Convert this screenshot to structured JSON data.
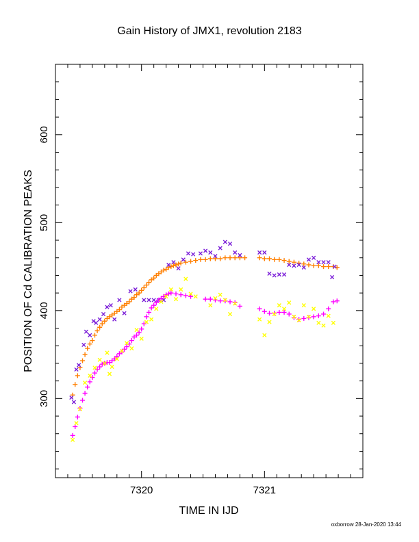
{
  "chart_data": {
    "type": "scatter",
    "title": "Gain History of JMX1, revolution 2183",
    "xlabel": "TIME IN IJD",
    "ylabel": "POSITION OF Cd CALIBRATION PEAKS",
    "xlim": [
      7319.3,
      7321.8
    ],
    "ylim": [
      210,
      680
    ],
    "x_ticks": [
      7320,
      7321
    ],
    "y_ticks": [
      300,
      400,
      500,
      600
    ],
    "grid": false,
    "footer": "oxborrow 28-Jan-2020 13:44",
    "series": [
      {
        "marker": "plus",
        "color": "#ff7f00",
        "points": [
          [
            7319.44,
            304
          ],
          [
            7319.46,
            316
          ],
          [
            7319.48,
            326
          ],
          [
            7319.5,
            335
          ],
          [
            7319.52,
            343
          ],
          [
            7319.54,
            350
          ],
          [
            7319.56,
            357
          ],
          [
            7319.58,
            362
          ],
          [
            7319.6,
            366
          ],
          [
            7319.62,
            372
          ],
          [
            7319.64,
            377
          ],
          [
            7319.66,
            381
          ],
          [
            7319.68,
            385
          ],
          [
            7319.7,
            388
          ],
          [
            7319.72,
            391
          ],
          [
            7319.74,
            393
          ],
          [
            7319.76,
            395
          ],
          [
            7319.78,
            397
          ],
          [
            7319.8,
            399
          ],
          [
            7319.82,
            401
          ],
          [
            7319.84,
            404
          ],
          [
            7319.86,
            406
          ],
          [
            7319.88,
            408
          ],
          [
            7319.9,
            410
          ],
          [
            7319.92,
            413
          ],
          [
            7319.94,
            415
          ],
          [
            7319.96,
            418
          ],
          [
            7319.98,
            420
          ],
          [
            7320.0,
            423
          ],
          [
            7320.02,
            426
          ],
          [
            7320.04,
            429
          ],
          [
            7320.06,
            432
          ],
          [
            7320.08,
            435
          ],
          [
            7320.1,
            437
          ],
          [
            7320.12,
            440
          ],
          [
            7320.14,
            442
          ],
          [
            7320.16,
            444
          ],
          [
            7320.18,
            446
          ],
          [
            7320.2,
            447
          ],
          [
            7320.22,
            449
          ],
          [
            7320.24,
            450
          ],
          [
            7320.26,
            451
          ],
          [
            7320.28,
            452
          ],
          [
            7320.3,
            453
          ],
          [
            7320.32,
            454
          ],
          [
            7320.36,
            455
          ],
          [
            7320.4,
            456
          ],
          [
            7320.44,
            457
          ],
          [
            7320.48,
            458
          ],
          [
            7320.52,
            458
          ],
          [
            7320.56,
            459
          ],
          [
            7320.6,
            459
          ],
          [
            7320.64,
            459
          ],
          [
            7320.68,
            460
          ],
          [
            7320.72,
            460
          ],
          [
            7320.76,
            460
          ],
          [
            7320.8,
            460
          ],
          [
            7320.84,
            460
          ],
          [
            7320.96,
            460
          ],
          [
            7321.0,
            459
          ],
          [
            7321.04,
            459
          ],
          [
            7321.08,
            458
          ],
          [
            7321.12,
            458
          ],
          [
            7321.16,
            457
          ],
          [
            7321.2,
            456
          ],
          [
            7321.24,
            455
          ],
          [
            7321.28,
            454
          ],
          [
            7321.32,
            453
          ],
          [
            7321.36,
            452
          ],
          [
            7321.4,
            451
          ],
          [
            7321.44,
            451
          ],
          [
            7321.48,
            450
          ],
          [
            7321.52,
            450
          ],
          [
            7321.56,
            450
          ],
          [
            7321.59,
            449
          ]
        ]
      },
      {
        "marker": "cross",
        "color": "#7b1fd8",
        "points": [
          [
            7319.43,
            301
          ],
          [
            7319.45,
            296
          ],
          [
            7319.47,
            333
          ],
          [
            7319.49,
            338
          ],
          [
            7319.53,
            361
          ],
          [
            7319.55,
            376
          ],
          [
            7319.58,
            372
          ],
          [
            7319.61,
            388
          ],
          [
            7319.63,
            386
          ],
          [
            7319.66,
            390
          ],
          [
            7319.69,
            396
          ],
          [
            7319.72,
            404
          ],
          [
            7319.75,
            406
          ],
          [
            7319.78,
            390
          ],
          [
            7319.82,
            412
          ],
          [
            7319.86,
            397
          ],
          [
            7319.91,
            422
          ],
          [
            7319.95,
            424
          ],
          [
            7320.02,
            412
          ],
          [
            7320.06,
            412
          ],
          [
            7320.1,
            412
          ],
          [
            7320.14,
            412
          ],
          [
            7320.18,
            412
          ],
          [
            7320.22,
            452
          ],
          [
            7320.26,
            455
          ],
          [
            7320.3,
            448
          ],
          [
            7320.34,
            458
          ],
          [
            7320.38,
            465
          ],
          [
            7320.42,
            464
          ],
          [
            7320.48,
            465
          ],
          [
            7320.52,
            468
          ],
          [
            7320.56,
            466
          ],
          [
            7320.6,
            462
          ],
          [
            7320.64,
            471
          ],
          [
            7320.68,
            478
          ],
          [
            7320.72,
            476
          ],
          [
            7320.76,
            466
          ],
          [
            7320.8,
            463
          ],
          [
            7320.96,
            466
          ],
          [
            7321.0,
            466
          ],
          [
            7321.04,
            442
          ],
          [
            7321.08,
            440
          ],
          [
            7321.12,
            441
          ],
          [
            7321.16,
            441
          ],
          [
            7321.2,
            452
          ],
          [
            7321.24,
            451
          ],
          [
            7321.28,
            452
          ],
          [
            7321.32,
            449
          ],
          [
            7321.36,
            458
          ],
          [
            7321.4,
            460
          ],
          [
            7321.44,
            455
          ],
          [
            7321.48,
            455
          ],
          [
            7321.52,
            455
          ],
          [
            7321.55,
            438
          ],
          [
            7321.57,
            450
          ]
        ]
      },
      {
        "marker": "plus",
        "color": "#ff00ff",
        "points": [
          [
            7319.44,
            258
          ],
          [
            7319.46,
            268
          ],
          [
            7319.48,
            279
          ],
          [
            7319.5,
            289
          ],
          [
            7319.52,
            298
          ],
          [
            7319.54,
            306
          ],
          [
            7319.56,
            313
          ],
          [
            7319.58,
            319
          ],
          [
            7319.6,
            324
          ],
          [
            7319.62,
            329
          ],
          [
            7319.64,
            333
          ],
          [
            7319.66,
            336
          ],
          [
            7319.68,
            339
          ],
          [
            7319.7,
            340
          ],
          [
            7319.72,
            341
          ],
          [
            7319.74,
            341
          ],
          [
            7319.76,
            343
          ],
          [
            7319.78,
            345
          ],
          [
            7319.8,
            348
          ],
          [
            7319.82,
            351
          ],
          [
            7319.84,
            353
          ],
          [
            7319.86,
            356
          ],
          [
            7319.88,
            359
          ],
          [
            7319.9,
            362
          ],
          [
            7319.92,
            366
          ],
          [
            7319.94,
            370
          ],
          [
            7319.96,
            372
          ],
          [
            7319.98,
            375
          ],
          [
            7320.0,
            379
          ],
          [
            7320.02,
            385
          ],
          [
            7320.04,
            393
          ],
          [
            7320.06,
            398
          ],
          [
            7320.08,
            403
          ],
          [
            7320.1,
            406
          ],
          [
            7320.12,
            409
          ],
          [
            7320.14,
            412
          ],
          [
            7320.16,
            414
          ],
          [
            7320.18,
            416
          ],
          [
            7320.2,
            418
          ],
          [
            7320.22,
            419
          ],
          [
            7320.24,
            420
          ],
          [
            7320.28,
            419
          ],
          [
            7320.32,
            418
          ],
          [
            7320.36,
            417
          ],
          [
            7320.4,
            416
          ],
          [
            7320.52,
            413
          ],
          [
            7320.56,
            413
          ],
          [
            7320.6,
            412
          ],
          [
            7320.64,
            411
          ],
          [
            7320.68,
            411
          ],
          [
            7320.72,
            410
          ],
          [
            7320.76,
            409
          ],
          [
            7320.8,
            405
          ],
          [
            7320.96,
            402
          ],
          [
            7321.0,
            399
          ],
          [
            7321.04,
            397
          ],
          [
            7321.08,
            397
          ],
          [
            7321.12,
            398
          ],
          [
            7321.16,
            398
          ],
          [
            7321.2,
            396
          ],
          [
            7321.24,
            392
          ],
          [
            7321.28,
            390
          ],
          [
            7321.32,
            391
          ],
          [
            7321.36,
            392
          ],
          [
            7321.4,
            393
          ],
          [
            7321.44,
            394
          ],
          [
            7321.48,
            396
          ],
          [
            7321.52,
            402
          ],
          [
            7321.56,
            410
          ],
          [
            7321.59,
            411
          ]
        ]
      },
      {
        "marker": "cross",
        "color": "#ffff00",
        "points": [
          [
            7319.44,
            253
          ],
          [
            7319.47,
            272
          ],
          [
            7319.5,
            288
          ],
          [
            7319.54,
            318
          ],
          [
            7319.58,
            326
          ],
          [
            7319.62,
            335
          ],
          [
            7319.66,
            344
          ],
          [
            7319.7,
            340
          ],
          [
            7319.72,
            352
          ],
          [
            7319.74,
            328
          ],
          [
            7319.76,
            336
          ],
          [
            7319.8,
            345
          ],
          [
            7319.84,
            354
          ],
          [
            7319.88,
            363
          ],
          [
            7319.92,
            357
          ],
          [
            7319.96,
            378
          ],
          [
            7320.0,
            368
          ],
          [
            7320.04,
            387
          ],
          [
            7320.08,
            390
          ],
          [
            7320.12,
            402
          ],
          [
            7320.16,
            410
          ],
          [
            7320.2,
            416
          ],
          [
            7320.24,
            424
          ],
          [
            7320.28,
            413
          ],
          [
            7320.32,
            424
          ],
          [
            7320.36,
            436
          ],
          [
            7320.4,
            419
          ],
          [
            7320.44,
            416
          ],
          [
            7320.56,
            406
          ],
          [
            7320.6,
            414
          ],
          [
            7320.64,
            418
          ],
          [
            7320.68,
            412
          ],
          [
            7320.72,
            396
          ],
          [
            7320.76,
            408
          ],
          [
            7320.96,
            390
          ],
          [
            7321.0,
            372
          ],
          [
            7321.04,
            387
          ],
          [
            7321.08,
            396
          ],
          [
            7321.12,
            406
          ],
          [
            7321.16,
            402
          ],
          [
            7321.2,
            409
          ],
          [
            7321.24,
            393
          ],
          [
            7321.28,
            389
          ],
          [
            7321.32,
            406
          ],
          [
            7321.36,
            393
          ],
          [
            7321.4,
            402
          ],
          [
            7321.44,
            386
          ],
          [
            7321.48,
            383
          ],
          [
            7321.52,
            394
          ],
          [
            7321.56,
            386
          ]
        ]
      }
    ]
  }
}
